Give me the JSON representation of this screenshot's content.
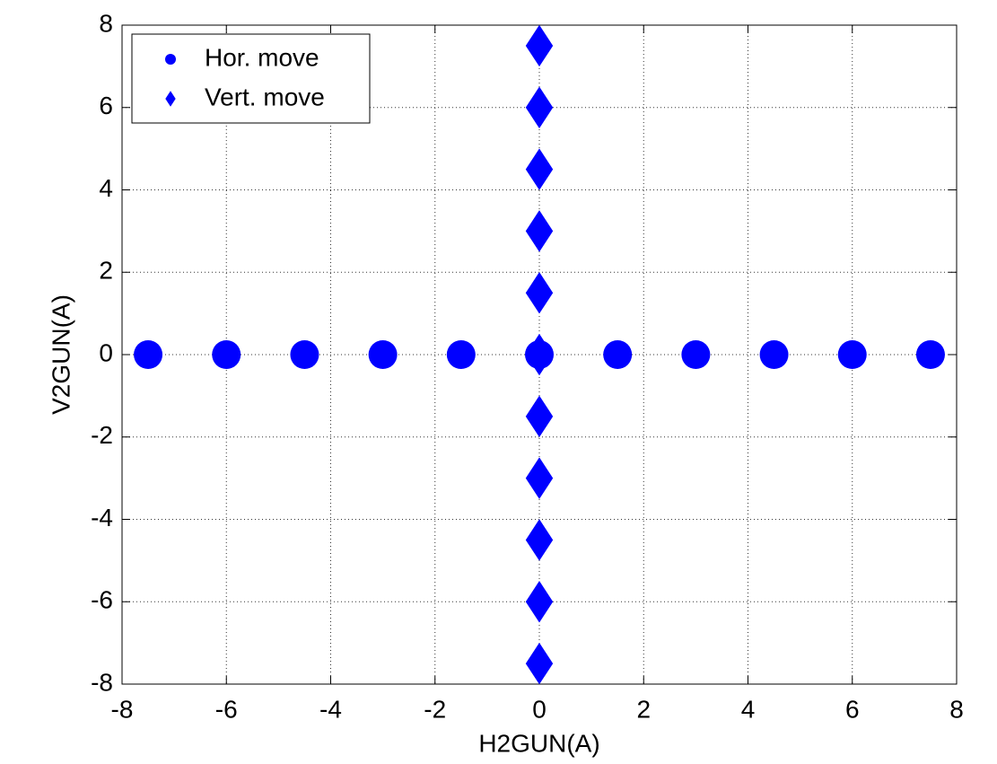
{
  "chart_data": {
    "type": "scatter",
    "xlabel": "H2GUN(A)",
    "ylabel": "V2GUN(A)",
    "xlim": [
      -8,
      8
    ],
    "ylim": [
      -8,
      8
    ],
    "xticks": [
      -8,
      -6,
      -4,
      -2,
      0,
      2,
      4,
      6,
      8
    ],
    "yticks": [
      -8,
      -6,
      -4,
      -2,
      0,
      2,
      4,
      6,
      8
    ],
    "grid": true,
    "legend": "upper left",
    "series": [
      {
        "name": "Hor. move",
        "color": "#0000ff",
        "marker": "circle",
        "x": [
          -7.5,
          -6,
          -4.5,
          -3,
          -1.5,
          0,
          1.5,
          3,
          4.5,
          6,
          7.5
        ],
        "values": [
          0,
          0,
          0,
          0,
          0,
          0,
          0,
          0,
          0,
          0,
          0
        ]
      },
      {
        "name": "Vert. move",
        "color": "#0000ff",
        "marker": "diamond",
        "x": [
          0,
          0,
          0,
          0,
          0,
          0,
          0,
          0,
          0,
          0,
          0
        ],
        "values": [
          7.5,
          6,
          4.5,
          3,
          1.5,
          0,
          -1.5,
          -3,
          -4.5,
          -6,
          -7.5
        ]
      }
    ]
  }
}
